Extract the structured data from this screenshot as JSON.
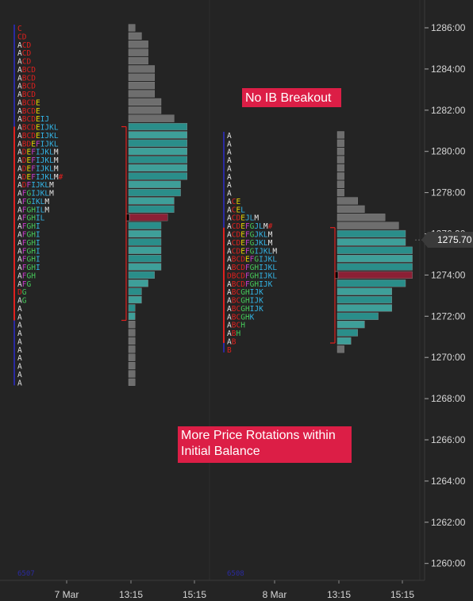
{
  "colors": {
    "background": "#242424",
    "grid": "#2e2e2e",
    "axis_text": "#d6d6d6",
    "bar_gray": "#6e6e6e",
    "bar_teal": "#2a8e8a",
    "bar_teal_light": "#3e9f99",
    "poc": "#8b2035",
    "ib_line": "#e0201e",
    "annotation_bg": "#dc1e46",
    "price_tag": "#3a3a3a"
  },
  "chart_data": {
    "type": "market_profile",
    "y_axis": {
      "ticks": [
        "1286:00",
        "1284:00",
        "1282:00",
        "1280:00",
        "1278:00",
        "1276:00",
        "1274:00",
        "1272:00",
        "1270:00",
        "1268:00",
        "1266:00",
        "1264:00",
        "1262:00",
        "1260:00"
      ],
      "tick_values": [
        1286,
        1284,
        1282,
        1280,
        1278,
        1276,
        1274,
        1272,
        1270,
        1268,
        1266,
        1264,
        1262,
        1260
      ],
      "range": [
        1259.3,
        1287.4
      ],
      "current_price": "1275.70",
      "current_value": 1275.7
    },
    "x_axis": {
      "ticks": [
        "7 Mar",
        "13:15",
        "15:15",
        "8 Mar",
        "13:15",
        "15:15"
      ]
    },
    "sessions": [
      {
        "name": "7 Mar",
        "tick": 0.4,
        "top_price": 1286.0,
        "letters": [
          "C",
          "CD",
          "ACD",
          "ACD",
          "ACD",
          "ABCD",
          "ABCD",
          "ABCD",
          "ABCD",
          "ABCDE",
          "ABCDE",
          "ABCDEIJ",
          "ABCDEIJKL",
          "ABCDEIJKL",
          "ABDEFIJKL",
          "ADEFIJKLM",
          "ADEFIJKLM",
          "ADEFIJKLM",
          "ADEFIJKLM#",
          "ADFIJKLM",
          "AFGIJKLM",
          "AFGIKLM",
          "AFGHILM",
          "AFGHIL",
          "AFGHI",
          "AFGHI",
          "AFGHI",
          "AFGHI",
          "AFGHI",
          "AFGHI",
          "AFGH",
          "AFG",
          "DG",
          "AG",
          "A",
          "A",
          "A",
          "A",
          "A",
          "A",
          "A",
          "A",
          "A",
          "A"
        ],
        "ib_high": 1281.2,
        "ib_low": 1271.8,
        "poc": 1276.8,
        "label": "6507"
      },
      {
        "name": "8 Mar",
        "tick": 0.4,
        "top_price": 1280.8,
        "letters": [
          "A",
          "A",
          "A",
          "A",
          "A",
          "A",
          "A",
          "A",
          "ACE",
          "ACEL",
          "ACDEJLM",
          "ACDEFGJLM#",
          "ACDEFGJKLM",
          "ACDEFGJKLM",
          "ACDEFGIJKLM",
          "ABCDEFGIJKL",
          "ABCDFGHIJKL",
          "DBCDFGHIJKL",
          "ABCDFGHIJK",
          "ABCGHIJK",
          "ABCGHIJK",
          "ABCGHIJK",
          "ABCGHK",
          "ABCH",
          "ABH",
          "AB",
          "B"
        ],
        "ib_high": 1276.3,
        "ib_low": 1270.7,
        "poc": 1274.0,
        "label": "6508"
      }
    ]
  },
  "annotations": {
    "ib_breakout": "No IB Breakout",
    "rotations": "More Price Rotations within Initial Balance"
  }
}
